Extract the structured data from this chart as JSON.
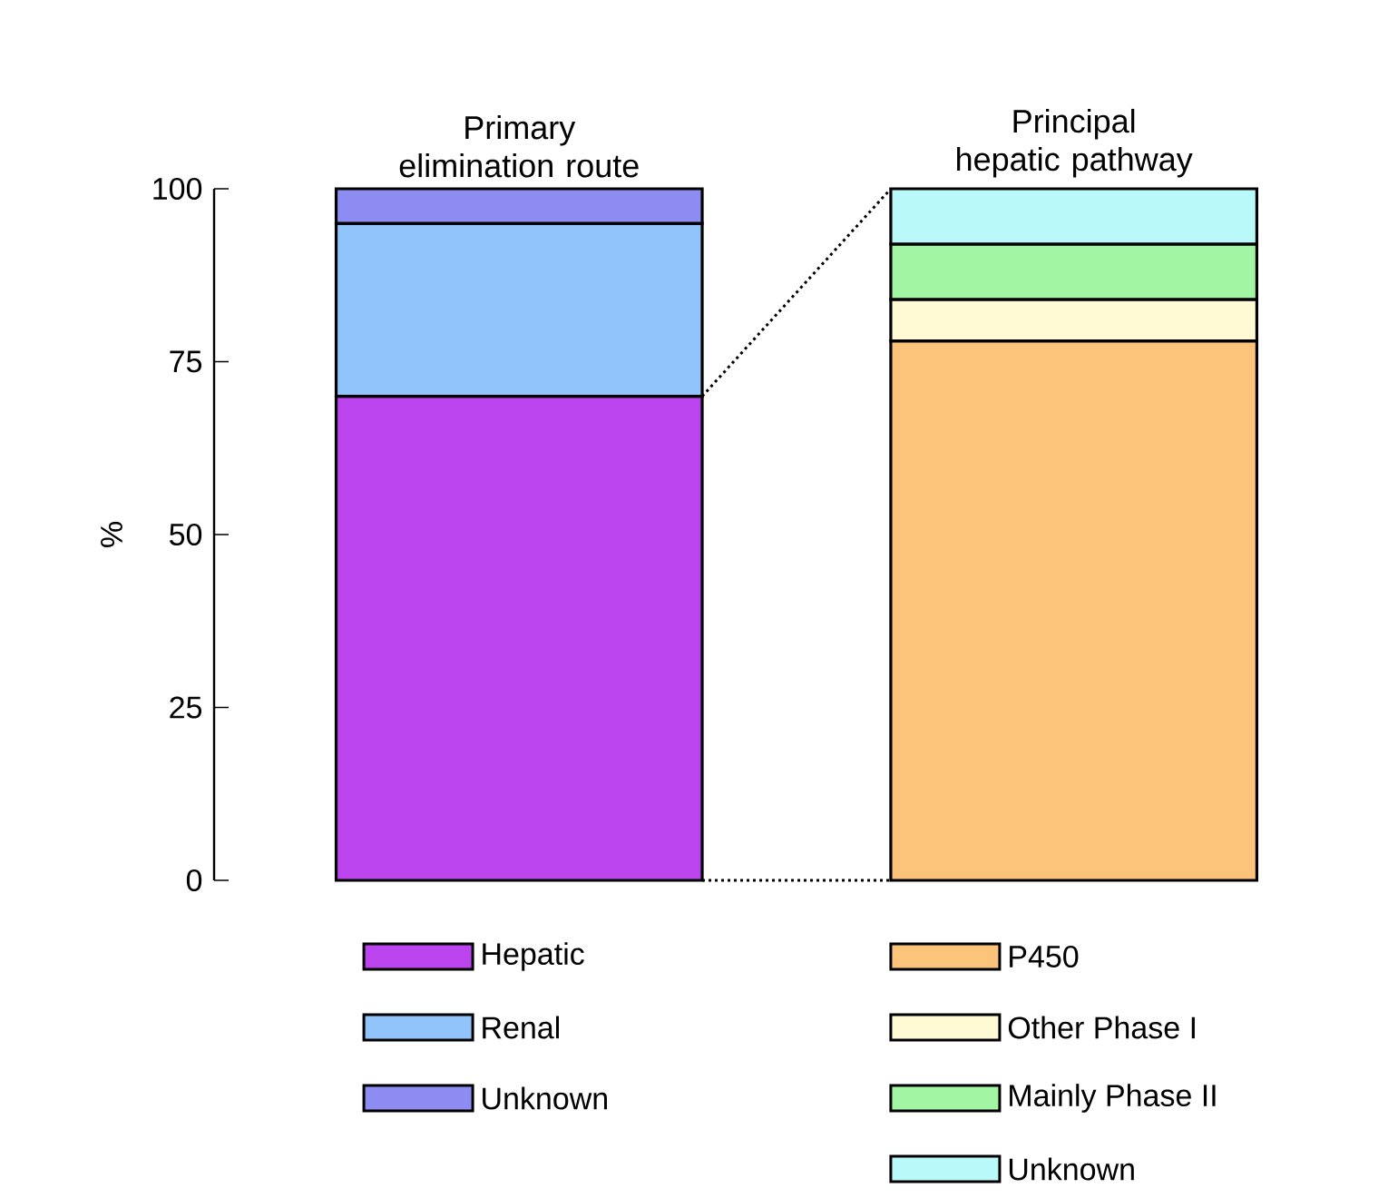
{
  "chart_data": {
    "type": "bar",
    "stacked": true,
    "ylabel": "%",
    "ylim": [
      0,
      100
    ],
    "yticks": [
      0,
      25,
      50,
      75,
      100
    ],
    "legend": "bottom",
    "categories": [
      "Primary elimination route",
      "Principal hepatic pathway"
    ],
    "series": [
      {
        "name": "Hepatic",
        "color": "#bb44ee",
        "values": [
          70,
          null
        ]
      },
      {
        "name": "Renal",
        "color": "#90c4fa",
        "values": [
          25,
          null
        ]
      },
      {
        "name": "Unknown",
        "color": "#8c8cf2",
        "values": [
          5,
          null
        ]
      },
      {
        "name": "P450",
        "color": "#fcc47a",
        "values": [
          null,
          78
        ]
      },
      {
        "name": "Other Phase I",
        "color": "#fffad4",
        "values": [
          null,
          6
        ]
      },
      {
        "name": "Mainly Phase II",
        "color": "#a2f5a2",
        "values": [
          null,
          8
        ]
      },
      {
        "name": "Unknown",
        "color": "#baf9fa",
        "values": [
          null,
          8
        ]
      }
    ]
  }
}
